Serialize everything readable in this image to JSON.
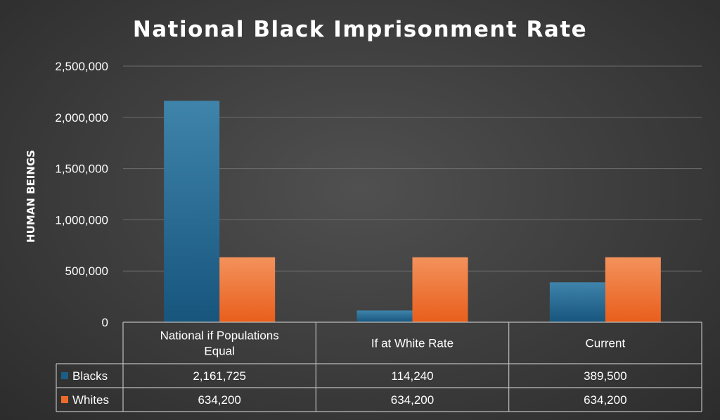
{
  "chart_data": {
    "type": "bar",
    "title": "National Black Imprisonment Rate",
    "xlabel": "",
    "ylabel": "HUMAN BEINGS",
    "ylim": [
      0,
      2500000
    ],
    "y_ticks": [
      0,
      500000,
      1000000,
      1500000,
      2000000,
      2500000
    ],
    "y_tick_labels": [
      "0",
      "500,000",
      "1,000,000",
      "1,500,000",
      "2,000,000",
      "2,500,000"
    ],
    "grid": true,
    "legend": "data-table",
    "categories": [
      "National if Populations Equal",
      "If at White Rate",
      "Current"
    ],
    "series": [
      {
        "name": "Blacks",
        "color": "#1c5d85",
        "values": [
          2161725,
          114240,
          389500
        ],
        "labels": [
          "2,161,725",
          "114,240",
          "389,500"
        ]
      },
      {
        "name": "Whites",
        "color": "#ed6b2a",
        "values": [
          634200,
          634200,
          634200
        ],
        "labels": [
          "634,200",
          "634,200",
          "634,200"
        ]
      }
    ]
  }
}
